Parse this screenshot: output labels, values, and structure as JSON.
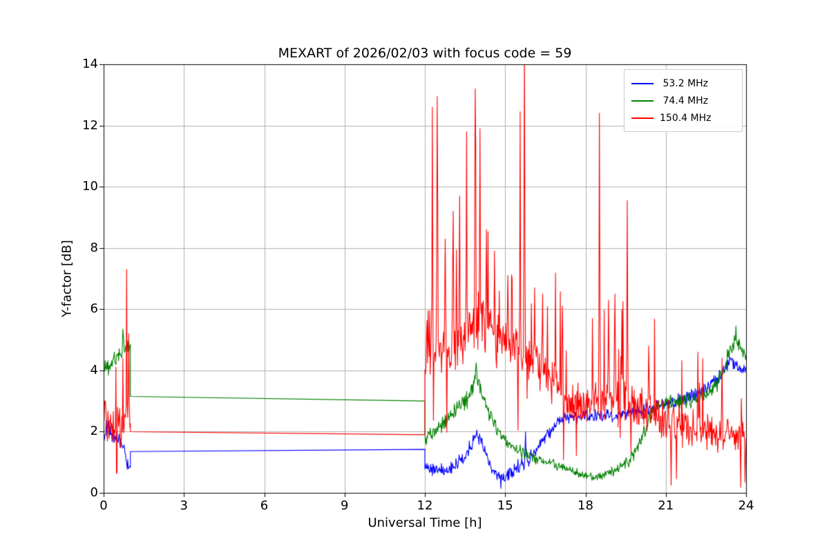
{
  "figure": {
    "background": "#ffffff"
  },
  "chart_data": {
    "type": "line",
    "title": "MEXART of 2026/02/03 with focus code = 59",
    "xlabel": "Universal Time [h]",
    "ylabel": "Y-factor [dB]",
    "xlim": [
      0,
      24
    ],
    "ylim": [
      0,
      14
    ],
    "xticks": [
      0,
      3,
      6,
      9,
      12,
      15,
      18,
      21,
      24
    ],
    "yticks": [
      0,
      2,
      4,
      6,
      8,
      10,
      12,
      14
    ],
    "grid": true,
    "grid_color": "#b0b0b0",
    "axes_color": "#000000",
    "legend_position": "upper right",
    "series": [
      {
        "name": " 53.2 MHz",
        "color": "#0000ff",
        "segments": [
          {
            "kind": "noisy",
            "keys": [
              [
                0.0,
                2.1,
                0.5
              ],
              [
                0.4,
                1.9,
                0.45
              ],
              [
                0.7,
                1.5,
                0.4
              ],
              [
                0.9,
                0.9,
                0.3
              ],
              [
                1.0,
                0.75,
                0.25
              ]
            ]
          },
          {
            "kind": "line",
            "points": [
              [
                1.0,
                1.35
              ],
              [
                12.0,
                1.42
              ]
            ]
          },
          {
            "kind": "noisy",
            "keys": [
              [
                12.0,
                0.85,
                0.25
              ],
              [
                12.5,
                0.75,
                0.25
              ],
              [
                13.0,
                0.8,
                0.28
              ],
              [
                13.5,
                1.15,
                0.3
              ],
              [
                13.9,
                1.9,
                0.3
              ],
              [
                14.15,
                1.6,
                0.3
              ],
              [
                14.5,
                0.75,
                0.25
              ],
              [
                15.0,
                0.5,
                0.22
              ],
              [
                15.4,
                0.8,
                0.28
              ],
              [
                15.9,
                1.1,
                0.3
              ],
              [
                16.3,
                1.6,
                0.3
              ],
              [
                16.8,
                2.2,
                0.28
              ],
              [
                17.2,
                2.45,
                0.25
              ],
              [
                17.8,
                2.5,
                0.25
              ],
              [
                18.4,
                2.55,
                0.28
              ],
              [
                19.0,
                2.5,
                0.26
              ],
              [
                19.6,
                2.6,
                0.28
              ],
              [
                20.2,
                2.7,
                0.3
              ],
              [
                21.0,
                2.9,
                0.3
              ],
              [
                21.8,
                3.1,
                0.3
              ],
              [
                22.4,
                3.35,
                0.3
              ],
              [
                23.0,
                3.8,
                0.3
              ],
              [
                23.35,
                4.3,
                0.28
              ],
              [
                23.7,
                4.15,
                0.28
              ],
              [
                24.0,
                3.95,
                0.3
              ]
            ],
            "spikes": [
              [
                15.75,
                2.0
              ],
              [
                14.85,
                0.15
              ]
            ]
          }
        ]
      },
      {
        "name": " 74.4 MHz",
        "color": "#008000",
        "segments": [
          {
            "kind": "noisy",
            "keys": [
              [
                0.0,
                4.0,
                0.35
              ],
              [
                0.3,
                4.25,
                0.35
              ],
              [
                0.6,
                4.55,
                0.4
              ],
              [
                0.8,
                4.85,
                0.4
              ],
              [
                1.0,
                4.7,
                0.35
              ]
            ],
            "spikes": [
              [
                0.72,
                5.35
              ]
            ]
          },
          {
            "kind": "line",
            "points": [
              [
                1.0,
                3.15
              ],
              [
                12.0,
                3.0
              ]
            ]
          },
          {
            "kind": "noisy",
            "keys": [
              [
                12.0,
                1.8,
                0.3
              ],
              [
                12.4,
                2.05,
                0.3
              ],
              [
                12.8,
                2.35,
                0.32
              ],
              [
                13.2,
                2.75,
                0.35
              ],
              [
                13.6,
                3.05,
                0.35
              ],
              [
                13.9,
                3.85,
                0.35
              ],
              [
                14.1,
                3.35,
                0.32
              ],
              [
                14.4,
                2.6,
                0.3
              ],
              [
                14.8,
                1.95,
                0.25
              ],
              [
                15.2,
                1.55,
                0.22
              ],
              [
                15.7,
                1.3,
                0.2
              ],
              [
                16.2,
                1.1,
                0.2
              ],
              [
                16.8,
                0.95,
                0.18
              ],
              [
                17.4,
                0.75,
                0.18
              ],
              [
                18.0,
                0.55,
                0.16
              ],
              [
                18.4,
                0.5,
                0.16
              ],
              [
                18.8,
                0.62,
                0.18
              ],
              [
                19.2,
                0.78,
                0.2
              ],
              [
                19.6,
                1.0,
                0.25
              ],
              [
                20.0,
                1.5,
                0.3
              ],
              [
                20.4,
                2.5,
                0.35
              ],
              [
                20.8,
                2.9,
                0.32
              ],
              [
                21.4,
                3.0,
                0.3
              ],
              [
                22.0,
                3.05,
                0.3
              ],
              [
                22.6,
                3.2,
                0.3
              ],
              [
                23.0,
                3.7,
                0.32
              ],
              [
                23.3,
                4.4,
                0.32
              ],
              [
                23.6,
                5.0,
                0.3
              ],
              [
                23.85,
                4.6,
                0.3
              ],
              [
                24.0,
                4.35,
                0.3
              ]
            ],
            "spikes": [
              [
                13.92,
                4.25
              ],
              [
                23.62,
                5.45
              ]
            ]
          }
        ]
      },
      {
        "name": "150.4 MHz",
        "color": "#ff0000",
        "segments": [
          {
            "kind": "noisy",
            "spiky": true,
            "keys": [
              [
                0.0,
                2.3,
                0.85
              ],
              [
                0.3,
                2.2,
                0.8
              ],
              [
                0.6,
                2.1,
                0.75
              ],
              [
                0.85,
                2.3,
                0.8
              ],
              [
                1.0,
                2.2,
                0.7
              ]
            ],
            "spikes": [
              [
                0.86,
                7.3
              ],
              [
                0.93,
                5.2
              ]
            ]
          },
          {
            "kind": "line",
            "points": [
              [
                1.0,
                2.0
              ],
              [
                12.0,
                1.9
              ]
            ]
          },
          {
            "kind": "noisy",
            "spiky": true,
            "keys": [
              [
                12.0,
                4.4,
                0.75
              ],
              [
                12.5,
                4.6,
                0.9
              ],
              [
                13.0,
                4.8,
                1.0
              ],
              [
                13.5,
                5.2,
                1.15
              ],
              [
                13.9,
                5.7,
                1.3
              ],
              [
                14.3,
                5.4,
                1.2
              ],
              [
                14.8,
                5.0,
                1.05
              ],
              [
                15.3,
                4.7,
                1.0
              ],
              [
                15.8,
                4.5,
                1.0
              ],
              [
                16.3,
                4.1,
                0.95
              ],
              [
                16.8,
                3.6,
                0.9
              ],
              [
                17.3,
                3.1,
                0.85
              ],
              [
                17.8,
                2.9,
                0.85
              ],
              [
                18.3,
                3.0,
                0.9
              ],
              [
                18.8,
                3.2,
                0.9
              ],
              [
                19.3,
                3.0,
                0.9
              ],
              [
                19.8,
                2.85,
                0.85
              ],
              [
                20.3,
                2.6,
                0.8
              ],
              [
                20.8,
                2.4,
                0.8
              ],
              [
                21.3,
                2.25,
                0.8
              ],
              [
                21.8,
                2.15,
                0.75
              ],
              [
                22.3,
                2.05,
                0.72
              ],
              [
                22.8,
                2.0,
                0.72
              ],
              [
                23.3,
                1.95,
                0.72
              ],
              [
                23.7,
                1.9,
                0.72
              ],
              [
                24.0,
                1.85,
                0.7
              ]
            ],
            "spikes": [
              [
                12.28,
                12.6
              ],
              [
                12.46,
                12.95
              ],
              [
                12.75,
                8.3
              ],
              [
                13.05,
                9.2
              ],
              [
                13.3,
                9.7
              ],
              [
                13.55,
                11.8
              ],
              [
                13.88,
                13.2
              ],
              [
                14.05,
                11.9
              ],
              [
                14.3,
                8.6
              ],
              [
                14.6,
                7.9
              ],
              [
                15.1,
                7.1
              ],
              [
                15.55,
                12.45
              ],
              [
                15.72,
                14.8
              ],
              [
                16.1,
                6.7
              ],
              [
                16.4,
                6.5
              ],
              [
                17.15,
                6.1
              ],
              [
                18.25,
                5.7
              ],
              [
                18.52,
                12.4
              ],
              [
                18.85,
                6.3
              ],
              [
                19.1,
                6.5
              ],
              [
                19.35,
                6.0
              ],
              [
                19.55,
                9.55
              ],
              [
                20.35,
                4.8
              ],
              [
                21.2,
                0.25
              ],
              [
                22.2,
                4.6
              ],
              [
                23.1,
                4.4
              ],
              [
                23.8,
                0.18
              ],
              [
                23.95,
                0.35
              ]
            ]
          }
        ]
      }
    ]
  }
}
